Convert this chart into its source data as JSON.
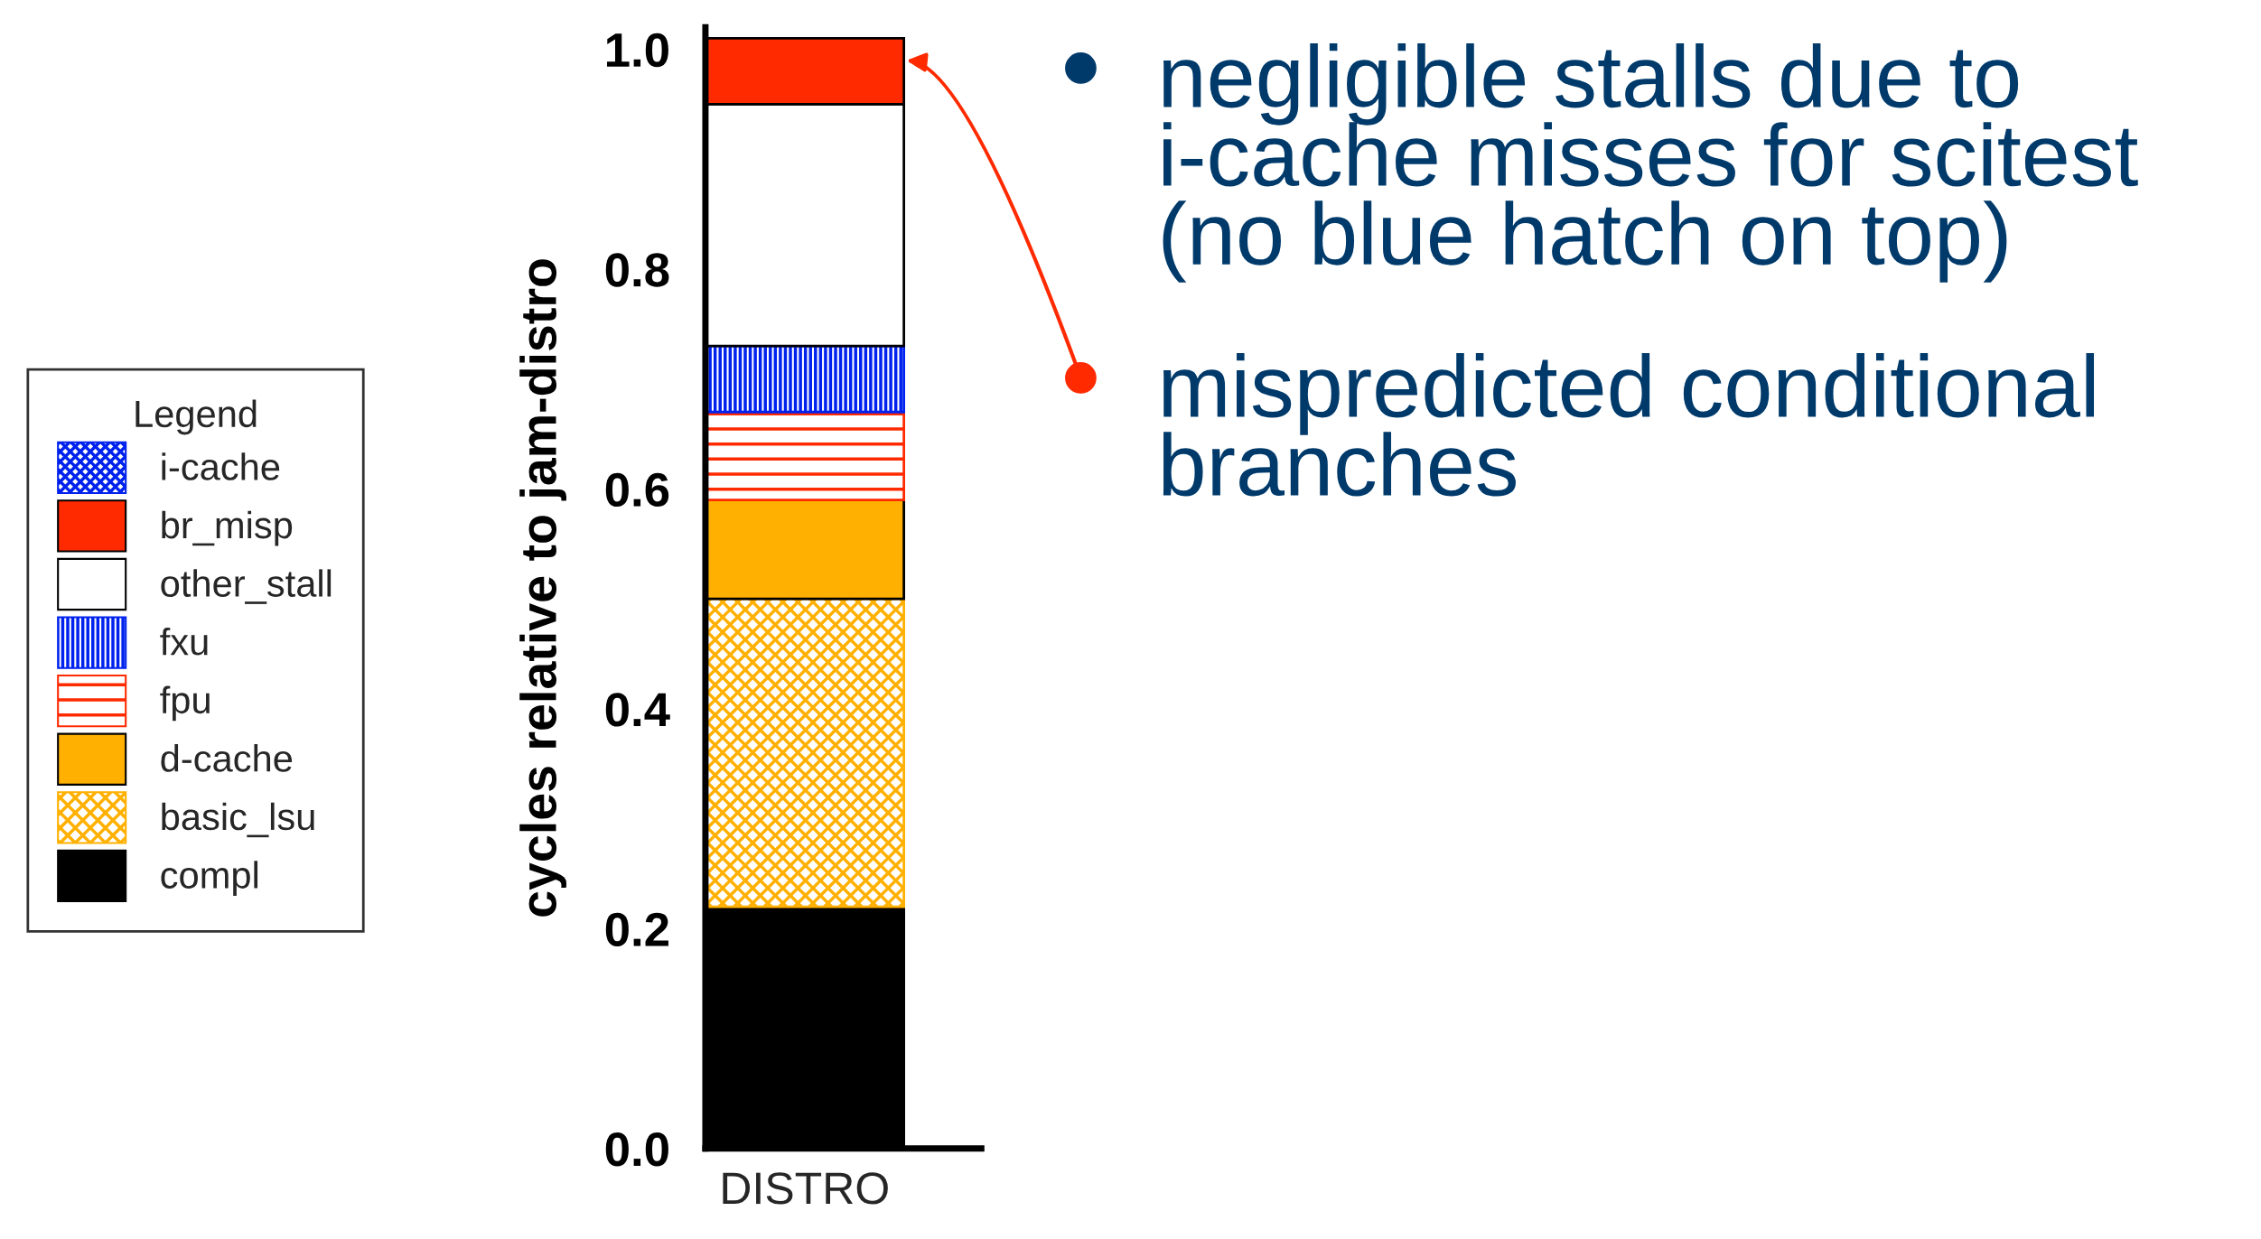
{
  "chart_data": {
    "type": "bar",
    "stacked": true,
    "categories": [
      "DISTRO"
    ],
    "ylabel": "cycles relative to jam-distro",
    "legend_title": "Legend",
    "legend": "left",
    "ylim": [
      0,
      1.02
    ],
    "yticks": [
      {
        "value": 0,
        "label": "0.0"
      },
      0.2,
      0.4,
      0.6,
      0.8,
      {
        "value": 1,
        "label": "1.0"
      }
    ],
    "grid": false,
    "series": [
      {
        "name": "compl",
        "color": "#000000",
        "values": [
          0.22
        ]
      },
      {
        "name": "basic_lsu",
        "color": "#ffb000",
        "values": [
          0.28
        ]
      },
      {
        "name": "d-cache",
        "color": "#ffb000",
        "values": [
          0.09
        ]
      },
      {
        "name": "fpu",
        "color": "#ff2a00",
        "values": [
          0.08
        ]
      },
      {
        "name": "fxu",
        "color": "#0022ee",
        "values": [
          0.06
        ]
      },
      {
        "name": "other_stall",
        "color": "#ffffff",
        "values": [
          0.22
        ]
      },
      {
        "name": "br_misp",
        "color": "#ff2a00",
        "values": [
          0.06
        ]
      },
      {
        "name": "i-cache",
        "color": "#0022ee",
        "values": [
          0
        ]
      }
    ],
    "annotations": [
      "negligible stalls due to i-cache misses for scitest (no blue hatch on top)",
      "mispredicted conditional branches"
    ]
  }
}
